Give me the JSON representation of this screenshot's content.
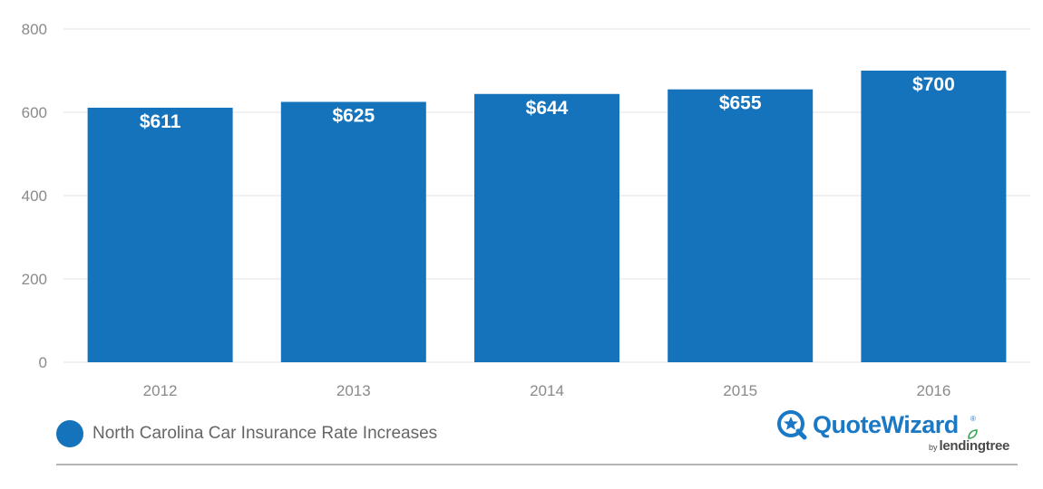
{
  "chart_data": {
    "type": "bar",
    "categories": [
      "2012",
      "2013",
      "2014",
      "2015",
      "2016"
    ],
    "series": [
      {
        "name": "North Carolina Car Insurance Rate Increases",
        "values": [
          611,
          625,
          644,
          655,
          700
        ]
      }
    ],
    "data_labels": [
      "$611",
      "$625",
      "$644",
      "$655",
      "$700"
    ],
    "yticks": [
      "0",
      "200",
      "400",
      "600",
      "800"
    ],
    "ylim": [
      0,
      800
    ],
    "grid": true,
    "legend_position": "bottom-left",
    "bar_color": "#1573bc",
    "title": "",
    "xlabel": "",
    "ylabel": ""
  },
  "legend": {
    "label": "North Carolina Car Insurance Rate Increases",
    "color": "#1573bc"
  },
  "logo": {
    "name": "QuoteWizard",
    "byline": "by",
    "parent": "lendingtree",
    "brand_color": "#1b78c4",
    "leaf_color": "#3aa657"
  }
}
